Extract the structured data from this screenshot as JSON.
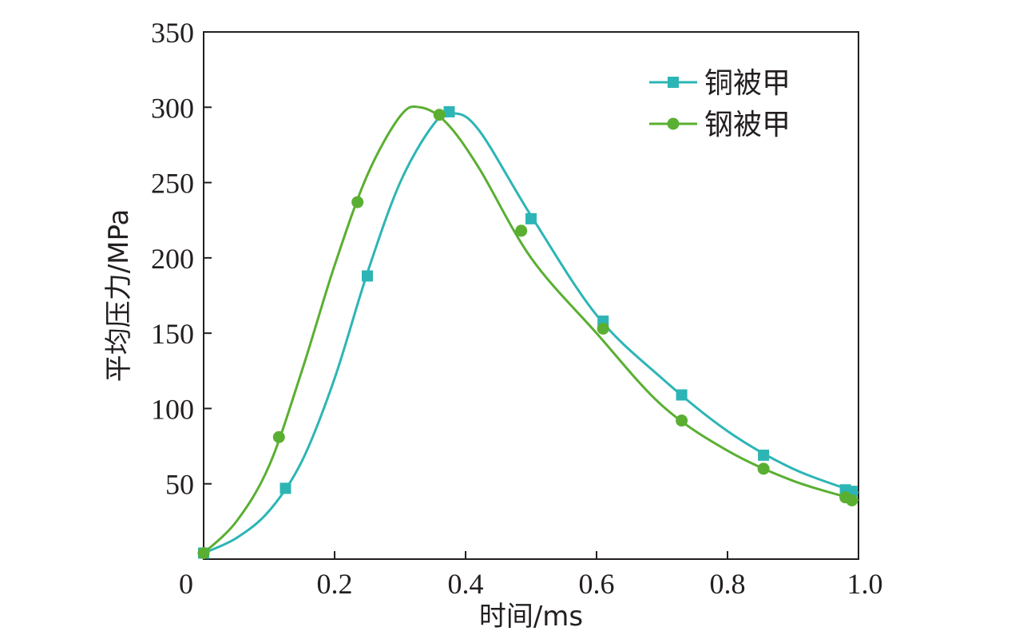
{
  "chart_data": {
    "type": "line",
    "xlabel": "时间/ms",
    "ylabel": "平均压力/MPa",
    "xlim": [
      0,
      1.0
    ],
    "ylim": [
      0,
      350
    ],
    "xticks": [
      0,
      0.2,
      0.4,
      0.6,
      0.8,
      1.0
    ],
    "xtick_labels": [
      "0",
      "0.2",
      "0.4",
      "0.6",
      "0.8",
      "1.0"
    ],
    "yticks": [
      50,
      100,
      150,
      200,
      250,
      300,
      350
    ],
    "ytick_labels": [
      "50",
      "100",
      "150",
      "200",
      "250",
      "300",
      "350"
    ],
    "grid": false,
    "legend_position": "top-right",
    "series": [
      {
        "name": "铜被甲",
        "color": "#2db5b5",
        "marker": "square",
        "curve_x": [
          0,
          0.05,
          0.1,
          0.15,
          0.2,
          0.25,
          0.3,
          0.35,
          0.38,
          0.42,
          0.5,
          0.6,
          0.7,
          0.8,
          0.9,
          1.0
        ],
        "curve_y": [
          4,
          14,
          32,
          65,
          120,
          190,
          250,
          288,
          296,
          285,
          228,
          162,
          120,
          85,
          60,
          44
        ],
        "markers_x": [
          0.0,
          0.125,
          0.25,
          0.375,
          0.5,
          0.61,
          0.73,
          0.855,
          0.98,
          0.99
        ],
        "markers_y": [
          4,
          47,
          188,
          297,
          226,
          158,
          109,
          69,
          46,
          45
        ]
      },
      {
        "name": "钢被甲",
        "color": "#5aaf32",
        "marker": "circle",
        "curve_x": [
          0,
          0.05,
          0.1,
          0.15,
          0.2,
          0.25,
          0.3,
          0.33,
          0.37,
          0.42,
          0.5,
          0.6,
          0.7,
          0.8,
          0.9,
          1.0
        ],
        "curve_y": [
          4,
          25,
          62,
          125,
          195,
          255,
          294,
          300,
          290,
          260,
          200,
          150,
          102,
          72,
          52,
          39
        ],
        "markers_x": [
          0.0,
          0.115,
          0.235,
          0.36,
          0.485,
          0.61,
          0.73,
          0.855,
          0.98,
          0.99
        ],
        "markers_y": [
          4,
          81,
          237,
          295,
          218,
          153,
          92,
          60,
          41,
          39
        ]
      }
    ]
  }
}
